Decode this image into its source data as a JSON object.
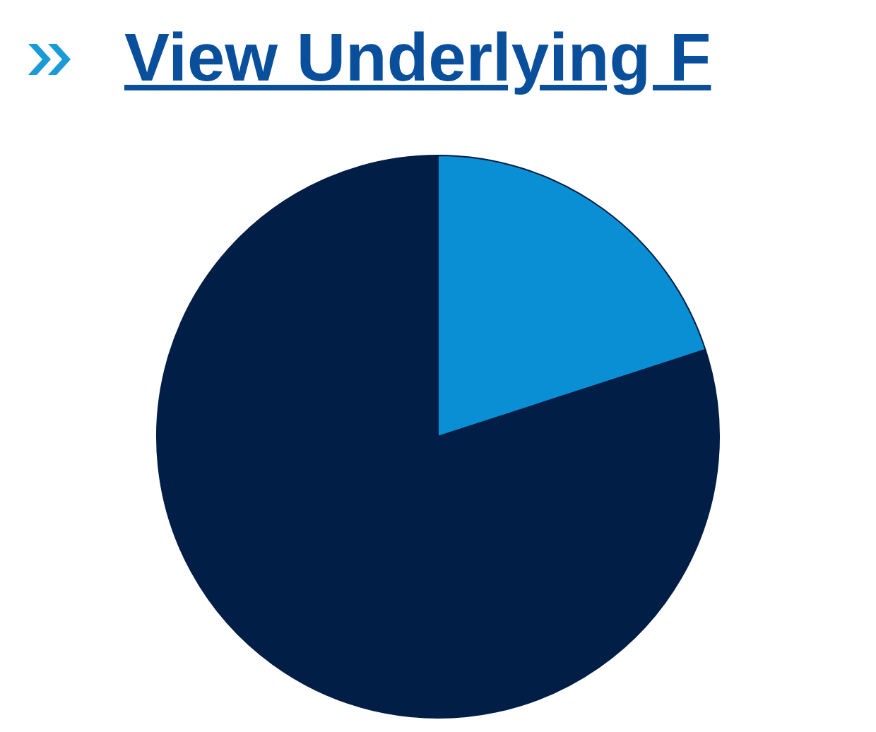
{
  "chart_data": {
    "type": "pie",
    "title": "View Underlying F",
    "categories": [
      null,
      null
    ],
    "values": [
      20,
      80
    ],
    "colors": [
      "#0a8fd4",
      "#001e46"
    ],
    "legend": false
  }
}
